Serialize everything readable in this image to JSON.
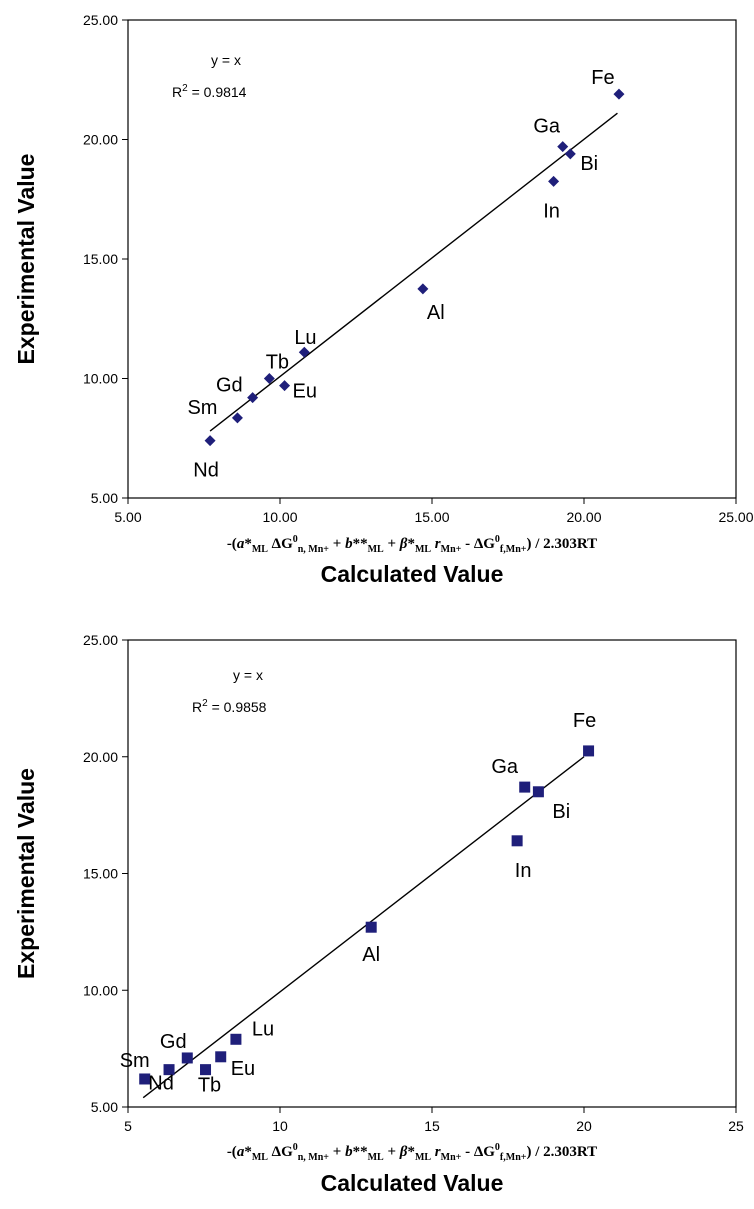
{
  "chart_data": [
    {
      "type": "scatter",
      "title": "",
      "xlabel_formula": "-(a*ML ΔG0n, Mn+ + b**ML + β*ML rMn+ - ΔG0f,Mn+) / 2.303RT",
      "xlabel": "Calculated Value",
      "ylabel": "Experimental Value",
      "xlim": [
        5,
        25
      ],
      "ylim": [
        5,
        25
      ],
      "x_ticks": [
        "5.00",
        "10.00",
        "15.00",
        "20.00",
        "25.00"
      ],
      "y_ticks": [
        "5.00",
        "10.00",
        "15.00",
        "20.00",
        "25.00"
      ],
      "equation": "y = x",
      "r2_prefix": "R",
      "r2_exp": "2",
      "r2_value": " = 0.9814",
      "marker": "diamond",
      "marker_color": "#1f1f7a",
      "trendline": {
        "from": [
          7.7,
          7.8
        ],
        "to": [
          21.1,
          21.1
        ]
      },
      "points": [
        {
          "label": "Nd",
          "x": 7.7,
          "y": 7.4
        },
        {
          "label": "Sm",
          "x": 8.6,
          "y": 8.35
        },
        {
          "label": "Gd",
          "x": 9.1,
          "y": 9.2
        },
        {
          "label": "Tb",
          "x": 9.65,
          "y": 10.0
        },
        {
          "label": "Eu",
          "x": 10.15,
          "y": 9.7
        },
        {
          "label": "Lu",
          "x": 10.8,
          "y": 11.1
        },
        {
          "label": "Al",
          "x": 14.7,
          "y": 13.75
        },
        {
          "label": "In",
          "x": 19.0,
          "y": 18.25
        },
        {
          "label": "Ga",
          "x": 19.3,
          "y": 19.7
        },
        {
          "label": "Bi",
          "x": 19.55,
          "y": 19.4
        },
        {
          "label": "Fe",
          "x": 21.15,
          "y": 21.9
        }
      ]
    },
    {
      "type": "scatter",
      "title": "",
      "xlabel_formula": "-(a*ML ΔG0n, Mn+ + b**ML + β*ML rMn+ - ΔG0f,Mn+) / 2.303RT",
      "xlabel": "Calculated Value",
      "ylabel": "Experimental Value",
      "xlim": [
        5,
        25
      ],
      "ylim": [
        5,
        25
      ],
      "x_ticks": [
        "5",
        "10",
        "15",
        "20",
        "25"
      ],
      "y_ticks": [
        "5.00",
        "10.00",
        "15.00",
        "20.00",
        "25.00"
      ],
      "equation": "y = x",
      "r2_prefix": "R",
      "r2_exp": "2",
      "r2_value": " = 0.9858",
      "marker": "square",
      "marker_color": "#1f1f7a",
      "trendline": {
        "from": [
          5.5,
          5.4
        ],
        "to": [
          20.0,
          20.0
        ]
      },
      "points": [
        {
          "label": "Sm",
          "x": 5.55,
          "y": 6.2
        },
        {
          "label": "Nd",
          "x": 6.35,
          "y": 6.6
        },
        {
          "label": "Gd",
          "x": 6.95,
          "y": 7.1
        },
        {
          "label": "Tb",
          "x": 7.55,
          "y": 6.6
        },
        {
          "label": "Eu",
          "x": 8.05,
          "y": 7.15
        },
        {
          "label": "Lu",
          "x": 8.55,
          "y": 7.9
        },
        {
          "label": "Al",
          "x": 13.0,
          "y": 12.7
        },
        {
          "label": "In",
          "x": 17.8,
          "y": 16.4
        },
        {
          "label": "Ga",
          "x": 18.05,
          "y": 18.7
        },
        {
          "label": "Bi",
          "x": 18.5,
          "y": 18.5
        },
        {
          "label": "Fe",
          "x": 20.15,
          "y": 20.25
        }
      ]
    }
  ]
}
